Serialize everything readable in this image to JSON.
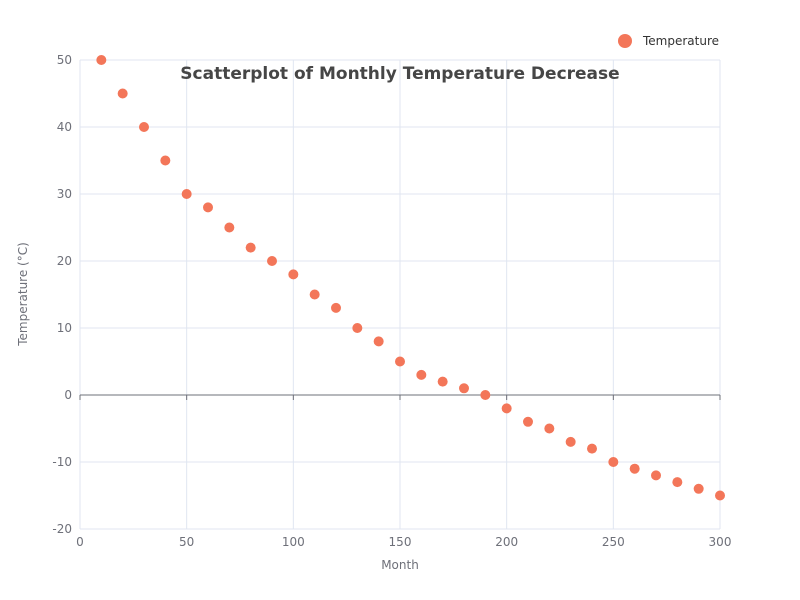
{
  "chart_data": {
    "type": "scatter",
    "title": "Scatterplot of Monthly Temperature Decrease",
    "xlabel": "Month",
    "ylabel": "Temperature (°C)",
    "xlim": [
      0,
      300
    ],
    "ylim": [
      -20,
      50
    ],
    "x_ticks": [
      0,
      50,
      100,
      150,
      200,
      250,
      300
    ],
    "y_ticks": [
      -20,
      -10,
      0,
      10,
      20,
      30,
      40,
      50
    ],
    "grid": true,
    "legend_position": "top-right",
    "series": [
      {
        "name": "Temperature",
        "color": "#f37659",
        "x": [
          10,
          20,
          30,
          40,
          50,
          60,
          70,
          80,
          90,
          100,
          110,
          120,
          130,
          140,
          150,
          160,
          170,
          180,
          190,
          200,
          210,
          220,
          230,
          240,
          250,
          260,
          270,
          280,
          290,
          300
        ],
        "y": [
          50,
          45,
          40,
          35,
          30,
          28,
          25,
          22,
          20,
          18,
          15,
          13,
          10,
          8,
          5,
          3,
          2,
          1,
          0,
          -2,
          -4,
          -5,
          -7,
          -8,
          -10,
          -11,
          -12,
          -13,
          -14,
          -15
        ]
      }
    ]
  }
}
